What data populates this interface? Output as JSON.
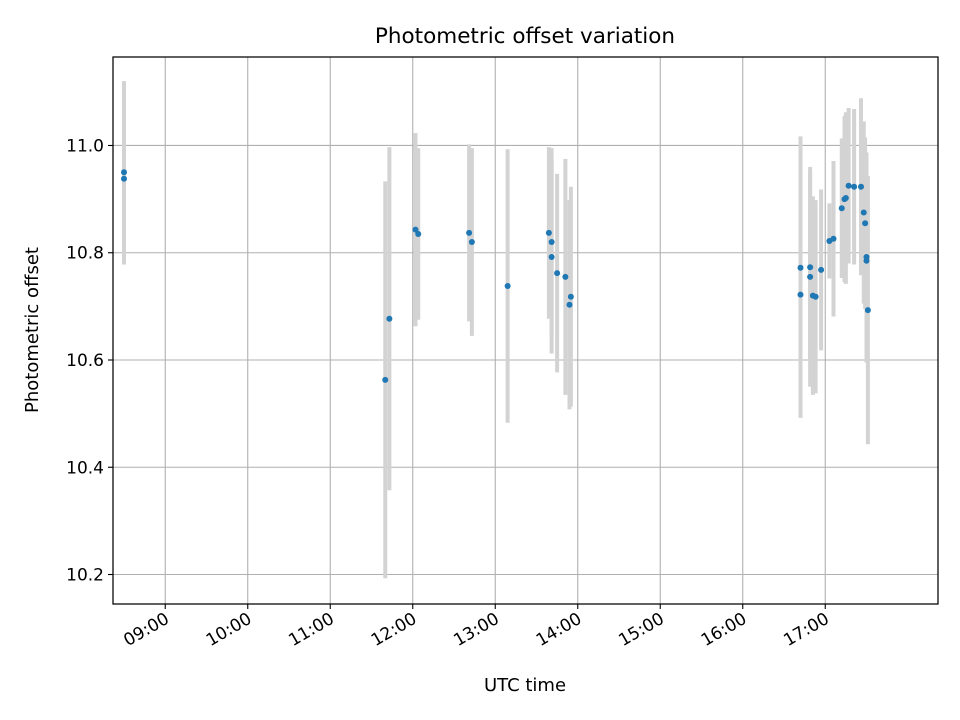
{
  "chart_data": {
    "type": "scatter",
    "title": "Photometric offset variation",
    "xlabel": "UTC time",
    "ylabel": "Photometric offset",
    "x_tick_labels": [
      "09:00",
      "10:00",
      "11:00",
      "12:00",
      "13:00",
      "14:00",
      "15:00",
      "16:00",
      "17:00"
    ],
    "y_tick_labels": [
      "10.2",
      "10.4",
      "10.6",
      "10.8",
      "11.0"
    ],
    "xlim": [
      "08:22",
      "18:22"
    ],
    "ylim": [
      10.145,
      11.165
    ],
    "grid": true,
    "colors": {
      "points": "#1f77b4",
      "errorbars": "#d3d3d3",
      "grid": "#b0b0b0"
    },
    "series": [
      {
        "points": [
          {
            "x": "08:30",
            "y": 10.95,
            "err": 0.17
          },
          {
            "x": "08:30",
            "y": 10.938,
            "err": 0.16
          },
          {
            "x": "11:40",
            "y": 10.563,
            "err": 0.37
          },
          {
            "x": "11:43",
            "y": 10.677,
            "err": 0.32
          },
          {
            "x": "12:02",
            "y": 10.843,
            "err": 0.18
          },
          {
            "x": "12:04",
            "y": 10.835,
            "err": 0.16
          },
          {
            "x": "12:41",
            "y": 10.837,
            "err": 0.165
          },
          {
            "x": "12:43",
            "y": 10.82,
            "err": 0.175
          },
          {
            "x": "13:09",
            "y": 10.738,
            "err": 0.255
          },
          {
            "x": "13:39",
            "y": 10.837,
            "err": 0.16
          },
          {
            "x": "13:41",
            "y": 10.82,
            "err": 0.175
          },
          {
            "x": "13:41",
            "y": 10.792,
            "err": 0.18
          },
          {
            "x": "13:45",
            "y": 10.762,
            "err": 0.185
          },
          {
            "x": "13:51",
            "y": 10.755,
            "err": 0.22
          },
          {
            "x": "13:54",
            "y": 10.703,
            "err": 0.195
          },
          {
            "x": "13:55",
            "y": 10.718,
            "err": 0.205
          },
          {
            "x": "16:42",
            "y": 10.772,
            "err": 0.245
          },
          {
            "x": "16:42",
            "y": 10.722,
            "err": 0.23
          },
          {
            "x": "16:49",
            "y": 10.773,
            "err": 0.175
          },
          {
            "x": "16:49",
            "y": 10.755,
            "err": 0.205
          },
          {
            "x": "16:51",
            "y": 10.72,
            "err": 0.185
          },
          {
            "x": "16:53",
            "y": 10.718,
            "err": 0.18
          },
          {
            "x": "16:57",
            "y": 10.768,
            "err": 0.15
          },
          {
            "x": "17:03",
            "y": 10.822,
            "err": 0.07
          },
          {
            "x": "17:06",
            "y": 10.826,
            "err": 0.145
          },
          {
            "x": "17:12",
            "y": 10.883,
            "err": 0.13
          },
          {
            "x": "17:14",
            "y": 10.9,
            "err": 0.155
          },
          {
            "x": "17:15",
            "y": 10.902,
            "err": 0.16
          },
          {
            "x": "17:17",
            "y": 10.925,
            "err": 0.145
          },
          {
            "x": "17:21",
            "y": 10.923,
            "err": 0.145
          },
          {
            "x": "17:26",
            "y": 10.923,
            "err": 0.165
          },
          {
            "x": "17:28",
            "y": 10.875,
            "err": 0.17
          },
          {
            "x": "17:29",
            "y": 10.855,
            "err": 0.16
          },
          {
            "x": "17:30",
            "y": 10.792,
            "err": 0.195
          },
          {
            "x": "17:30",
            "y": 10.785,
            "err": 0.19
          },
          {
            "x": "17:31",
            "y": 10.693,
            "err": 0.25
          }
        ]
      }
    ]
  }
}
